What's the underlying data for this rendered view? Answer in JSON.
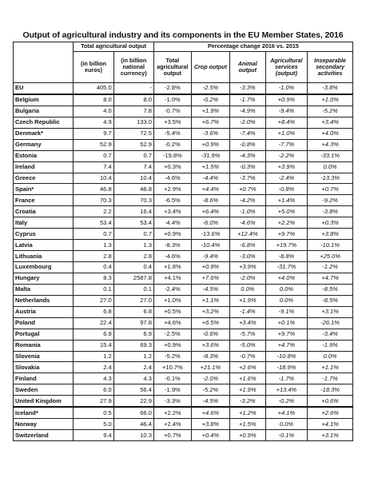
{
  "title": "Output of agricultural industry and its components in the EU Member States, 2016",
  "headers": {
    "group_total": "Total agricultural output",
    "group_change": "Percentage change 2016 vs. 2015",
    "col_eur": "(in billion euros)",
    "col_nat": "(in billion national currency)",
    "col_total": "Total agricultural output",
    "col_crop": "Crop output",
    "col_animal": "Animal output",
    "col_services": "Agricultural services (output)",
    "col_inseparable": "Inseparable secondary activities"
  },
  "rows": [
    {
      "country": "EU",
      "eur": "405.0",
      "nat": "-",
      "total": "-2.8%",
      "crop": "-2.5%",
      "animal": "-3.3%",
      "services": "-1.0%",
      "insep": "-3.8%"
    },
    {
      "country": "Belgium",
      "eur": "8.0",
      "nat": "8.0",
      "total": "-1.0%",
      "crop": "-0.2%",
      "animal": "-1.7%",
      "services": "+0.9%",
      "insep": "+1.0%"
    },
    {
      "country": "Bulgaria",
      "eur": "4.0",
      "nat": "7.8",
      "total": "-0.7%",
      "crop": "+1.9%",
      "animal": "-4.9%",
      "services": "-9.4%",
      "insep": "-5.2%"
    },
    {
      "country": "Czech Republic",
      "eur": "4.9",
      "nat": "133.0",
      "total": "+3.5%",
      "crop": "+6.7%",
      "animal": "-2.0%",
      "services": "+8.4%",
      "insep": "+3.4%"
    },
    {
      "country": "Denmark*",
      "eur": "9.7",
      "nat": "72.5",
      "total": "-5.4%",
      "crop": "-3.6%",
      "animal": "-7.4%",
      "services": "+1.0%",
      "insep": "+4.0%"
    },
    {
      "country": "Germany",
      "eur": "52.9",
      "nat": "52.9",
      "total": "-0.2%",
      "crop": "+0.9%",
      "animal": "-0.8%",
      "services": "-7.7%",
      "insep": "+4.3%"
    },
    {
      "country": "Estonia",
      "eur": "0.7",
      "nat": "0.7",
      "total": "-19.8%",
      "crop": "-31.9%",
      "animal": "-4.3%",
      "services": "-2.2%",
      "insep": "-33.1%"
    },
    {
      "country": "Ireland",
      "eur": "7.4",
      "nat": "7.4",
      "total": "+0.3%",
      "crop": "+1.5%",
      "animal": "-0.3%",
      "services": "+3.9%",
      "insep": "0.0%"
    },
    {
      "country": "Greece",
      "eur": "10.4",
      "nat": "10.4",
      "total": "-4.6%",
      "crop": "-4.4%",
      "animal": "-3.7%",
      "services": "-2.4%",
      "insep": "-13.3%"
    },
    {
      "country": "Spain*",
      "eur": "46.8",
      "nat": "46.8",
      "total": "+2.9%",
      "crop": "+4.4%",
      "animal": "+0.7%",
      "services": "-0.8%",
      "insep": "+0.7%"
    },
    {
      "country": "France",
      "eur": "70.3",
      "nat": "70.3",
      "total": "-6.5%",
      "crop": "-8.6%",
      "animal": "-4.2%",
      "services": "+1.4%",
      "insep": "-9.2%"
    },
    {
      "country": "Croatia",
      "eur": "2.2",
      "nat": "16.4",
      "total": "+3.4%",
      "crop": "+6.4%",
      "animal": "-1.0%",
      "services": "+5.0%",
      "insep": "-3.8%"
    },
    {
      "country": "Italy",
      "eur": "53.4",
      "nat": "53.4",
      "total": "-4.4%",
      "crop": "-6.0%",
      "animal": "-4.6%",
      "services": "+2.2%",
      "insep": "+0.3%"
    },
    {
      "country": "Cyprus",
      "eur": "0.7",
      "nat": "0.7",
      "total": "+0.9%",
      "crop": "-13.6%",
      "animal": "+12.4%",
      "services": "+9.7%",
      "insep": "+3.8%"
    },
    {
      "country": "Latvia",
      "eur": "1.3",
      "nat": "1.3",
      "total": "-8.3%",
      "crop": "-10.4%",
      "animal": "-6.8%",
      "services": "+19.7%",
      "insep": "-10.1%"
    },
    {
      "country": "Lithuania",
      "eur": "2.8",
      "nat": "2.8",
      "total": "-4.6%",
      "crop": "-9.4%",
      "animal": "-3.0%",
      "services": "-8.8%",
      "insep": "+25.0%"
    },
    {
      "country": "Luxembourg",
      "eur": "0.4",
      "nat": "0.4",
      "total": "+1.8%",
      "crop": "+0.9%",
      "animal": "+3.9%",
      "services": "-31.7%",
      "insep": "-1.2%"
    },
    {
      "country": "Hungary",
      "eur": "8.3",
      "nat": "2587.8",
      "total": "+4.1%",
      "crop": "+7.6%",
      "animal": "-2.0%",
      "services": "+4.0%",
      "insep": "+4.7%"
    },
    {
      "country": "Malta",
      "eur": "0.1",
      "nat": "0.1",
      "total": "-2.4%",
      "crop": "-4.5%",
      "animal": "0.0%",
      "services": "0.0%",
      "insep": "-8.5%"
    },
    {
      "country": "Netherlands",
      "eur": "27.0",
      "nat": "27.0",
      "total": "+1.0%",
      "crop": "+1.1%",
      "animal": "+1.9%",
      "services": "0.0%",
      "insep": "-8.5%"
    },
    {
      "country": "Austria",
      "eur": "6.8",
      "nat": "6.8",
      "total": "+0.5%",
      "crop": "+3.2%",
      "animal": "-1.4%",
      "services": "-9.1%",
      "insep": "+3.1%"
    },
    {
      "country": "Poland",
      "eur": "22.4",
      "nat": "97.8",
      "total": "+4.6%",
      "crop": "+6.5%",
      "animal": "+3.4%",
      "services": "+0.1%",
      "insep": "-26.1%"
    },
    {
      "country": "Portugal",
      "eur": "6.9",
      "nat": "6.9",
      "total": "-2.5%",
      "crop": "-0.6%",
      "animal": "-5.7%",
      "services": "+9.7%",
      "insep": "-3.4%"
    },
    {
      "country": "Romania",
      "eur": "15.4",
      "nat": "69.3",
      "total": "+0.9%",
      "crop": "+3.6%",
      "animal": "-5.0%",
      "services": "+4.7%",
      "insep": "-1.9%"
    },
    {
      "country": "Slovenia",
      "eur": "1.2",
      "nat": "1.2",
      "total": "-5.2%",
      "crop": "-8.3%",
      "animal": "-0.7%",
      "services": "-10.8%",
      "insep": "0.0%"
    },
    {
      "country": "Slovakia",
      "eur": "2.4",
      "nat": "2.4",
      "total": "+10.7%",
      "crop": "+21.1%",
      "animal": "+2.6%",
      "services": "-18.9%",
      "insep": "+1.1%"
    },
    {
      "country": "Finland",
      "eur": "4.3",
      "nat": "4.3",
      "total": "-0.1%",
      "crop": "-2.0%",
      "animal": "+1.6%",
      "services": "-1.7%",
      "insep": "-1.7%"
    },
    {
      "country": "Sweden",
      "eur": "6.0",
      "nat": "56.4",
      "total": "-1.9%",
      "crop": "-5.2%",
      "animal": "+1.9%",
      "services": "+13.4%",
      "insep": "-18.3%"
    },
    {
      "country": "United Kingdom",
      "eur": "27.9",
      "nat": "22.9",
      "total": "-3.3%",
      "crop": "-4.5%",
      "animal": "-3.2%",
      "services": "-0.2%",
      "insep": "+0.6%"
    },
    {
      "country": "Iceland*",
      "eur": "0.5",
      "nat": "66.0",
      "total": "+2.2%",
      "crop": "+4.6%",
      "animal": "+1.2%",
      "services": "+4.1%",
      "insep": "+2.6%"
    },
    {
      "country": "Norway",
      "eur": "5.0",
      "nat": "46.4",
      "total": "+2.4%",
      "crop": "+3.8%",
      "animal": "+1.5%",
      "services": "0.0%",
      "insep": "+4.1%"
    },
    {
      "country": "Switzerland",
      "eur": "9.4",
      "nat": "10.3",
      "total": "+0.7%",
      "crop": "+0.4%",
      "animal": "+0.9%",
      "services": "-0.1%",
      "insep": "+3.1%"
    }
  ]
}
